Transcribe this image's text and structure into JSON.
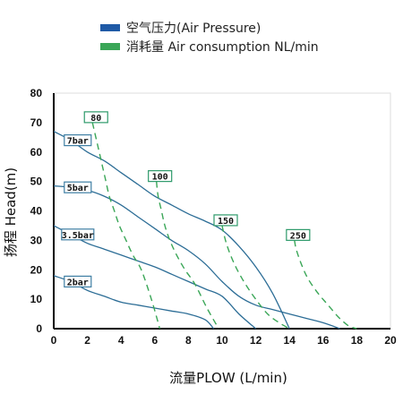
{
  "legend": [
    {
      "label": "空气压力(Air Pressure)",
      "color": "#1f5aa6"
    },
    {
      "label": "消耗量 Air consumption NL/min",
      "color": "#3aa657"
    }
  ],
  "colors": {
    "pressure_curve": "#2c6d96",
    "consumption_curve": "#3aa657",
    "tag_border": "#3e7ea3",
    "consumption_tag_border": "#2e9a6a",
    "axis": "#000000",
    "grid": "#dedede"
  },
  "chart_data": {
    "type": "line",
    "xlabel": "流量PLOW (L/min)",
    "ylabel": "扬程 Head(m)",
    "xlim": [
      0,
      20
    ],
    "ylim": [
      0,
      80
    ],
    "xticks": [
      "0",
      "2",
      "4",
      "6",
      "8",
      "10",
      "12",
      "14",
      "16",
      "18",
      "20"
    ],
    "yticks": [
      "0",
      "10",
      "20",
      "30",
      "40",
      "50",
      "60",
      "70",
      "80"
    ],
    "grid": "box-only",
    "legend_position": "top",
    "series": [
      {
        "name": "7bar",
        "kind": "air_pressure",
        "x": [
          0,
          1,
          2,
          3,
          4,
          5,
          6,
          7,
          8,
          9,
          10,
          11,
          12,
          13,
          14
        ],
        "y": [
          67,
          64,
          60,
          57,
          53,
          49,
          45,
          42,
          39,
          36.5,
          33.5,
          28,
          21,
          12,
          0
        ]
      },
      {
        "name": "5bar",
        "kind": "air_pressure",
        "x": [
          0,
          1,
          2,
          3,
          4,
          5,
          6,
          7,
          8,
          9,
          10,
          11,
          12,
          13,
          14,
          15,
          16,
          17
        ],
        "y": [
          48.5,
          48,
          47,
          45,
          42,
          38,
          34,
          30,
          26.5,
          22,
          16,
          11,
          8,
          6.5,
          5,
          3.5,
          2,
          0
        ]
      },
      {
        "name": "3.5bar",
        "kind": "air_pressure",
        "x": [
          0,
          1,
          2,
          3,
          4,
          5,
          6,
          7,
          8,
          9,
          10,
          11,
          12
        ],
        "y": [
          35,
          32,
          29,
          27,
          25,
          23,
          21,
          18.5,
          16,
          13.5,
          11,
          5,
          0
        ]
      },
      {
        "name": "2bar",
        "kind": "air_pressure",
        "x": [
          0,
          1,
          2,
          3,
          4,
          5,
          6,
          7,
          8,
          9,
          9.5
        ],
        "y": [
          18,
          16,
          13,
          11,
          9,
          8,
          7,
          6,
          5,
          3,
          0
        ]
      },
      {
        "name": "80",
        "kind": "air_consumption",
        "x": [
          2.3,
          2.5,
          2.7,
          2.9,
          3.1,
          3.3,
          3.6,
          3.9,
          4.3,
          4.7,
          5.2,
          5.8,
          6.3
        ],
        "y": [
          70,
          65,
          60,
          55,
          50,
          45,
          40,
          35,
          30,
          25,
          20,
          10,
          0
        ]
      },
      {
        "name": "100",
        "kind": "air_consumption",
        "x": [
          6.1,
          6.2,
          6.4,
          6.6,
          6.9,
          7.3,
          7.8,
          8.4,
          9.1,
          9.8
        ],
        "y": [
          50,
          45,
          40,
          35,
          30,
          25,
          20,
          15,
          7,
          0
        ]
      },
      {
        "name": "150",
        "kind": "air_consumption",
        "x": [
          10.0,
          10.2,
          10.5,
          10.9,
          11.4,
          12.0,
          12.7,
          13.4,
          14.0
        ],
        "y": [
          35,
          30,
          25,
          20,
          15,
          10,
          5,
          2,
          0
        ]
      },
      {
        "name": "250",
        "kind": "air_consumption",
        "x": [
          14.3,
          14.4,
          14.7,
          15.1,
          15.7,
          16.3,
          16.9,
          17.5,
          18.0
        ],
        "y": [
          30,
          27,
          22,
          17,
          12,
          8,
          4,
          1,
          0
        ]
      }
    ],
    "series_labels": [
      {
        "text": "7bar",
        "series": "7bar"
      },
      {
        "text": "5bar",
        "series": "5bar"
      },
      {
        "text": "3.5bar",
        "series": "3.5bar"
      },
      {
        "text": "2bar",
        "series": "2bar"
      },
      {
        "text": "80",
        "series": "80"
      },
      {
        "text": "100",
        "series": "100"
      },
      {
        "text": "150",
        "series": "150"
      },
      {
        "text": "250",
        "series": "250"
      }
    ]
  }
}
